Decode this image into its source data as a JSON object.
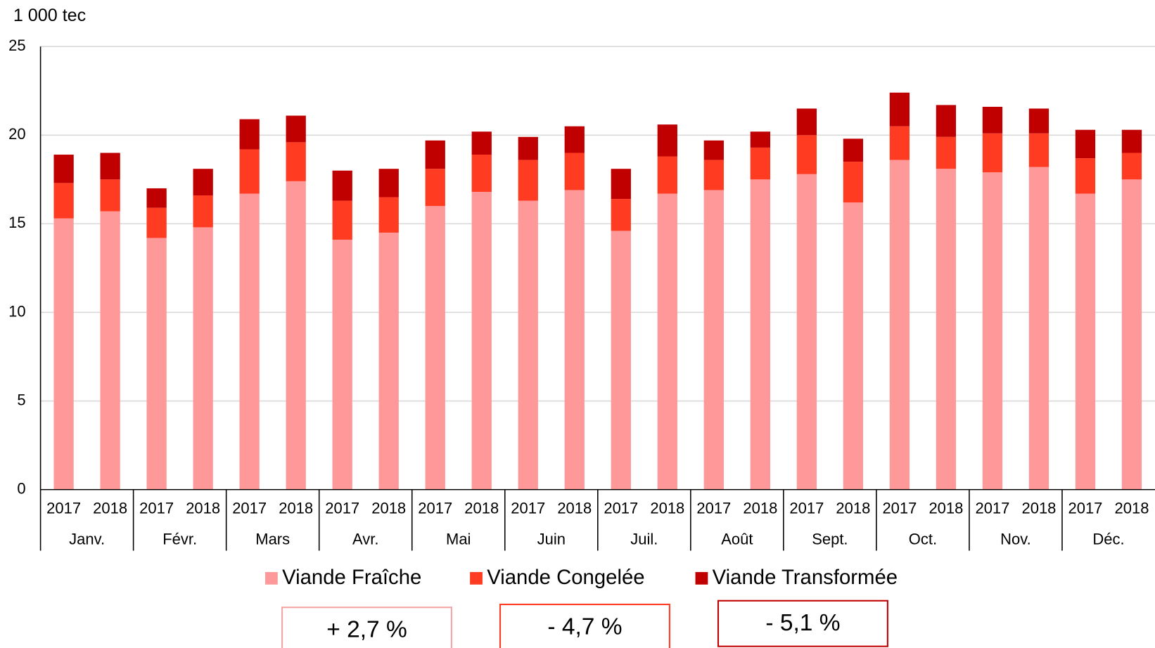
{
  "chart_data": {
    "type": "stacked-bar",
    "y_label": "1 000 tec",
    "categories": [
      "2017",
      "2018",
      "2017",
      "2018",
      "2017",
      "2018",
      "2017",
      "2018",
      "2017",
      "2018",
      "2017",
      "2018",
      "2017",
      "2018",
      "2017",
      "2018",
      "2017",
      "2018",
      "2017",
      "2018",
      "2017",
      "2018",
      "2017",
      "2018"
    ],
    "groups": [
      "Janv.",
      "Févr.",
      "Mars",
      "Avr.",
      "Mai",
      "Juin",
      "Juil.",
      "Août",
      "Sept.",
      "Oct.",
      "Nov.",
      "Déc."
    ],
    "series": [
      {
        "name": "Viande Fraîche",
        "color": "#ff9999",
        "values": [
          15.3,
          15.7,
          14.2,
          14.8,
          16.7,
          17.4,
          14.1,
          14.5,
          16.0,
          16.8,
          16.3,
          16.9,
          14.6,
          16.7,
          16.9,
          17.5,
          17.8,
          16.2,
          18.6,
          18.1,
          17.9,
          18.2,
          16.7,
          17.5
        ]
      },
      {
        "name": "Viande Congelée",
        "color": "#ff3b22",
        "values": [
          2.0,
          1.8,
          1.7,
          1.8,
          2.5,
          2.2,
          2.2,
          2.0,
          2.1,
          2.1,
          2.3,
          2.1,
          1.8,
          2.1,
          1.7,
          1.8,
          2.2,
          2.3,
          1.9,
          1.8,
          2.2,
          1.9,
          2.0,
          1.5
        ]
      },
      {
        "name": "Viande Transformée",
        "color": "#c00000",
        "values": [
          1.6,
          1.5,
          1.1,
          1.5,
          1.7,
          1.5,
          1.7,
          1.6,
          1.6,
          1.3,
          1.3,
          1.5,
          1.7,
          1.8,
          1.1,
          0.9,
          1.5,
          1.3,
          1.9,
          1.8,
          1.5,
          1.4,
          1.6,
          1.3
        ]
      }
    ],
    "ylim": [
      0,
      25
    ],
    "yticks": [
      0,
      5,
      10,
      15,
      20,
      25
    ],
    "grid": true,
    "legend": "bottom",
    "annotations": [
      {
        "text": "+ 2,7 %",
        "color": "#f4a6a6"
      },
      {
        "text": "- 4,7 %",
        "color": "#ff3b22"
      },
      {
        "text": "- 5,1 %",
        "color": "#c00000"
      }
    ]
  }
}
